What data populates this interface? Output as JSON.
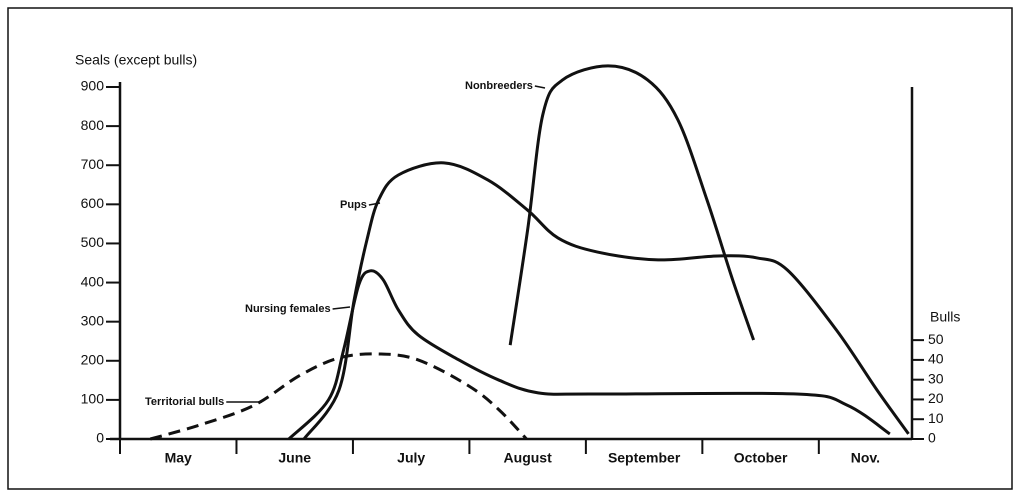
{
  "chart_data": {
    "type": "line",
    "y_label": "Seals (except bulls)",
    "y2_label": "Bulls",
    "categories": [
      "May",
      "June",
      "July",
      "August",
      "September",
      "October",
      "Nov."
    ],
    "xlim": [
      0,
      6.8
    ],
    "ylim": [
      0,
      900
    ],
    "yticks": [
      0,
      100,
      200,
      300,
      400,
      500,
      600,
      700,
      800,
      900
    ],
    "y2lim": [
      0,
      178
    ],
    "y2ticks": [
      0,
      10,
      20,
      30,
      40,
      50
    ],
    "series": [
      {
        "name": "Nonbreeders",
        "color": "#111111",
        "dashed": false,
        "x": [
          3.35,
          3.5,
          3.63,
          3.8,
          4.19,
          4.53,
          4.79,
          5.04,
          5.26,
          5.44
        ],
        "values": [
          240,
          535,
          829,
          918,
          954,
          918,
          816,
          611,
          407,
          253
        ]
      },
      {
        "name": "Pups",
        "color": "#111111",
        "dashed": false,
        "x": [
          1.58,
          1.88,
          2.01,
          2.12,
          2.22,
          2.39,
          2.78,
          3.16,
          3.5,
          3.76,
          4.1,
          4.62,
          5.13,
          5.47,
          5.73,
          6.15,
          6.5,
          6.77
        ],
        "values": [
          0,
          125,
          355,
          509,
          611,
          675,
          706,
          662,
          585,
          514,
          478,
          458,
          468,
          463,
          432,
          279,
          125,
          13
        ]
      },
      {
        "name": "Nursing females",
        "color": "#111111",
        "dashed": false,
        "x": [
          1.45,
          1.79,
          1.92,
          2.05,
          2.15,
          2.26,
          2.39,
          2.56,
          2.91,
          3.25,
          3.59,
          4.1,
          5.81,
          6.24,
          6.61
        ],
        "values": [
          0,
          100,
          228,
          394,
          430,
          407,
          330,
          266,
          202,
          151,
          118,
          115,
          115,
          87,
          13
        ]
      },
      {
        "name": "Territorial bulls",
        "color": "#111111",
        "dashed": true,
        "axis": "y2",
        "x": [
          0.26,
          0.68,
          1.15,
          1.54,
          1.88,
          2.22,
          2.56,
          2.99,
          3.25,
          3.49
        ],
        "values": [
          0,
          7,
          17,
          32,
          41,
          43,
          40,
          27,
          15,
          0
        ]
      }
    ]
  }
}
